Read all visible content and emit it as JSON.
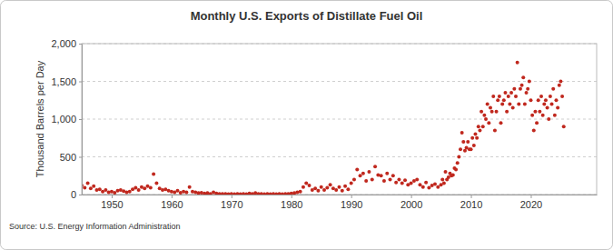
{
  "chart_data": {
    "type": "scatter",
    "title": "Monthly U.S. Exports of Distillate Fuel Oil",
    "y_label": "Thousand Barrels per Day",
    "source": "Source: U.S. Energy Information Administration",
    "color": "#c0281e",
    "marker": "circle",
    "grid": true,
    "xlim": [
      1945,
      2031
    ],
    "xticks": [
      1950,
      1960,
      1970,
      1980,
      1990,
      2000,
      2010,
      2020
    ],
    "ylim": [
      0,
      2000
    ],
    "yticks": [
      0,
      500,
      {
        "value": 1000,
        "label": "1,000"
      },
      {
        "value": 1500,
        "label": "1,500"
      },
      {
        "value": 2000,
        "label": "2,000"
      }
    ],
    "x": [
      1945.0,
      1945.5,
      1946.0,
      1946.5,
      1947.0,
      1947.5,
      1948.0,
      1948.5,
      1949.0,
      1949.5,
      1950.0,
      1950.5,
      1951.0,
      1951.5,
      1952.0,
      1952.5,
      1953.0,
      1953.5,
      1954.0,
      1954.5,
      1955.0,
      1955.5,
      1956.0,
      1956.5,
      1957.0,
      1957.5,
      1958.0,
      1958.5,
      1959.0,
      1959.5,
      1960.0,
      1960.5,
      1961.0,
      1961.5,
      1962.0,
      1962.5,
      1963.0,
      1963.5,
      1964.0,
      1964.5,
      1965.0,
      1965.5,
      1966.0,
      1966.5,
      1967.0,
      1967.5,
      1968.0,
      1968.5,
      1969.0,
      1969.5,
      1970.0,
      1970.5,
      1971.0,
      1971.5,
      1972.0,
      1972.5,
      1973.0,
      1973.5,
      1974.0,
      1974.5,
      1975.0,
      1975.5,
      1976.0,
      1976.5,
      1977.0,
      1977.5,
      1978.0,
      1978.5,
      1979.0,
      1979.5,
      1980.0,
      1980.5,
      1981.0,
      1981.5,
      1982.0,
      1982.5,
      1983.0,
      1983.5,
      1984.0,
      1984.5,
      1985.0,
      1985.5,
      1986.0,
      1986.5,
      1987.0,
      1987.5,
      1988.0,
      1988.5,
      1989.0,
      1989.5,
      1990.0,
      1990.5,
      1991.0,
      1991.5,
      1992.0,
      1992.5,
      1993.0,
      1993.5,
      1994.0,
      1994.5,
      1995.0,
      1995.5,
      1996.0,
      1996.5,
      1997.0,
      1997.5,
      1998.0,
      1998.5,
      1999.0,
      1999.5,
      2000.0,
      2000.5,
      2001.0,
      2001.5,
      2002.0,
      2002.5,
      2003.0,
      2003.5,
      2004.0,
      2004.5,
      2005.0,
      2005.25,
      2005.5,
      2005.75,
      2006.0,
      2006.25,
      2006.5,
      2006.75,
      2007.0,
      2007.25,
      2007.5,
      2007.75,
      2008.0,
      2008.25,
      2008.5,
      2008.75,
      2009.0,
      2009.25,
      2009.5,
      2009.75,
      2010.0,
      2010.25,
      2010.5,
      2010.75,
      2011.0,
      2011.25,
      2011.5,
      2011.75,
      2012.0,
      2012.25,
      2012.5,
      2012.75,
      2013.0,
      2013.25,
      2013.5,
      2013.75,
      2014.0,
      2014.25,
      2014.5,
      2014.75,
      2015.0,
      2015.25,
      2015.5,
      2015.75,
      2016.0,
      2016.25,
      2016.5,
      2016.75,
      2017.0,
      2017.25,
      2017.5,
      2017.75,
      2018.0,
      2018.25,
      2018.5,
      2018.75,
      2019.0,
      2019.25,
      2019.5,
      2019.75,
      2020.0,
      2020.25,
      2020.5,
      2020.75,
      2021.0,
      2021.25,
      2021.5,
      2021.75,
      2022.0,
      2022.25,
      2022.5,
      2022.75,
      2023.0,
      2023.25,
      2023.5,
      2023.75,
      2024.0,
      2024.25,
      2024.5,
      2024.75,
      2025.0,
      2025.25,
      2025.5
    ],
    "values": [
      120,
      90,
      150,
      80,
      110,
      60,
      70,
      40,
      60,
      30,
      40,
      25,
      50,
      60,
      45,
      30,
      40,
      70,
      90,
      60,
      100,
      80,
      110,
      90,
      270,
      150,
      80,
      60,
      70,
      50,
      40,
      30,
      50,
      25,
      40,
      30,
      100,
      40,
      30,
      20,
      25,
      15,
      20,
      10,
      30,
      15,
      10,
      8,
      10,
      5,
      8,
      5,
      10,
      5,
      8,
      5,
      15,
      10,
      20,
      8,
      10,
      5,
      8,
      5,
      10,
      5,
      8,
      5,
      10,
      8,
      15,
      20,
      30,
      40,
      100,
      150,
      120,
      60,
      80,
      50,
      100,
      60,
      90,
      130,
      80,
      60,
      100,
      50,
      110,
      70,
      150,
      200,
      330,
      250,
      280,
      180,
      300,
      200,
      370,
      260,
      250,
      180,
      280,
      200,
      250,
      160,
      200,
      150,
      190,
      130,
      150,
      180,
      200,
      130,
      100,
      160,
      90,
      120,
      140,
      100,
      130,
      200,
      150,
      300,
      200,
      230,
      280,
      250,
      260,
      350,
      330,
      420,
      500,
      600,
      820,
      700,
      580,
      620,
      700,
      600,
      600,
      750,
      650,
      800,
      750,
      900,
      850,
      1100,
      900,
      1050,
      1000,
      1200,
      950,
      1150,
      1100,
      1300,
      850,
      1100,
      1250,
      1300,
      950,
      1200,
      1250,
      1350,
      1100,
      1300,
      1200,
      1350,
      1150,
      1400,
      1300,
      1750,
      1200,
      1400,
      1450,
      1550,
      1200,
      1350,
      1400,
      1500,
      1250,
      1050,
      850,
      1100,
      950,
      1250,
      1100,
      1300,
      1050,
      1200,
      1250,
      1150,
      1000,
      1300,
      1200,
      1400,
      1050,
      1250,
      1150,
      1450,
      1500,
      1300,
      900
    ]
  }
}
